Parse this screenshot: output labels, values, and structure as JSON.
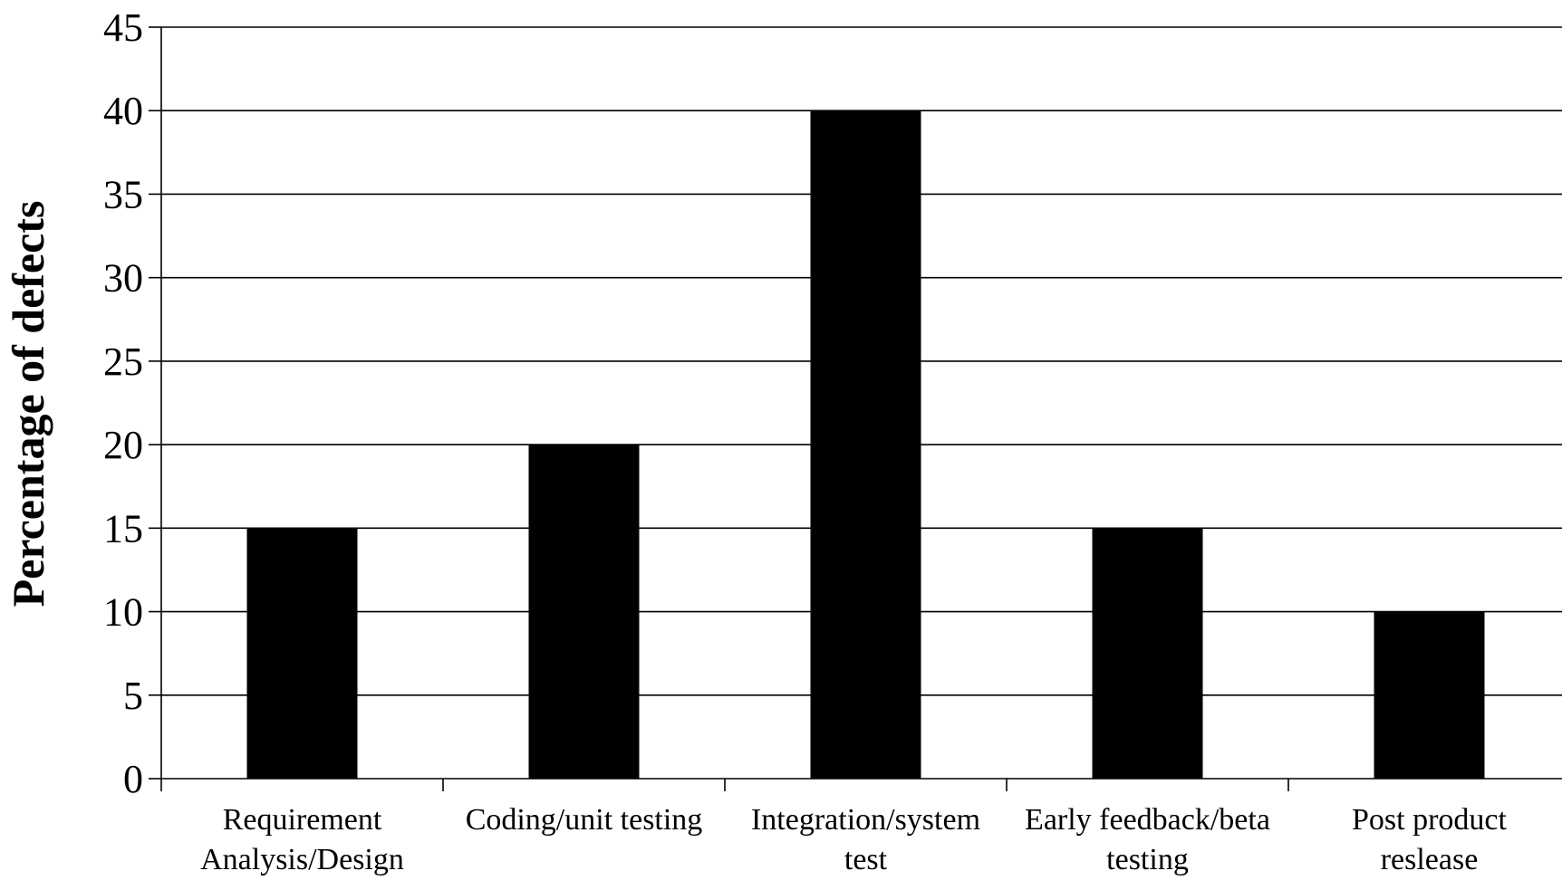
{
  "chart_data": {
    "type": "bar",
    "categories": [
      [
        "Requirement",
        "Analysis/Design"
      ],
      [
        "Coding/unit testing"
      ],
      [
        "Integration/system",
        "test"
      ],
      [
        "Early feedback/beta",
        "testing"
      ],
      [
        "Post product",
        "reslease"
      ]
    ],
    "values": [
      15,
      20,
      40,
      15,
      10
    ],
    "ylabel": "Percentage of defects",
    "xlabel": "",
    "ylim": [
      0,
      45
    ],
    "yticks": [
      "0",
      "5",
      "10",
      "15",
      "20",
      "25",
      "30",
      "35",
      "40",
      "45"
    ],
    "grid": true,
    "bar_color": "#000000",
    "grid_color": "#000000"
  }
}
